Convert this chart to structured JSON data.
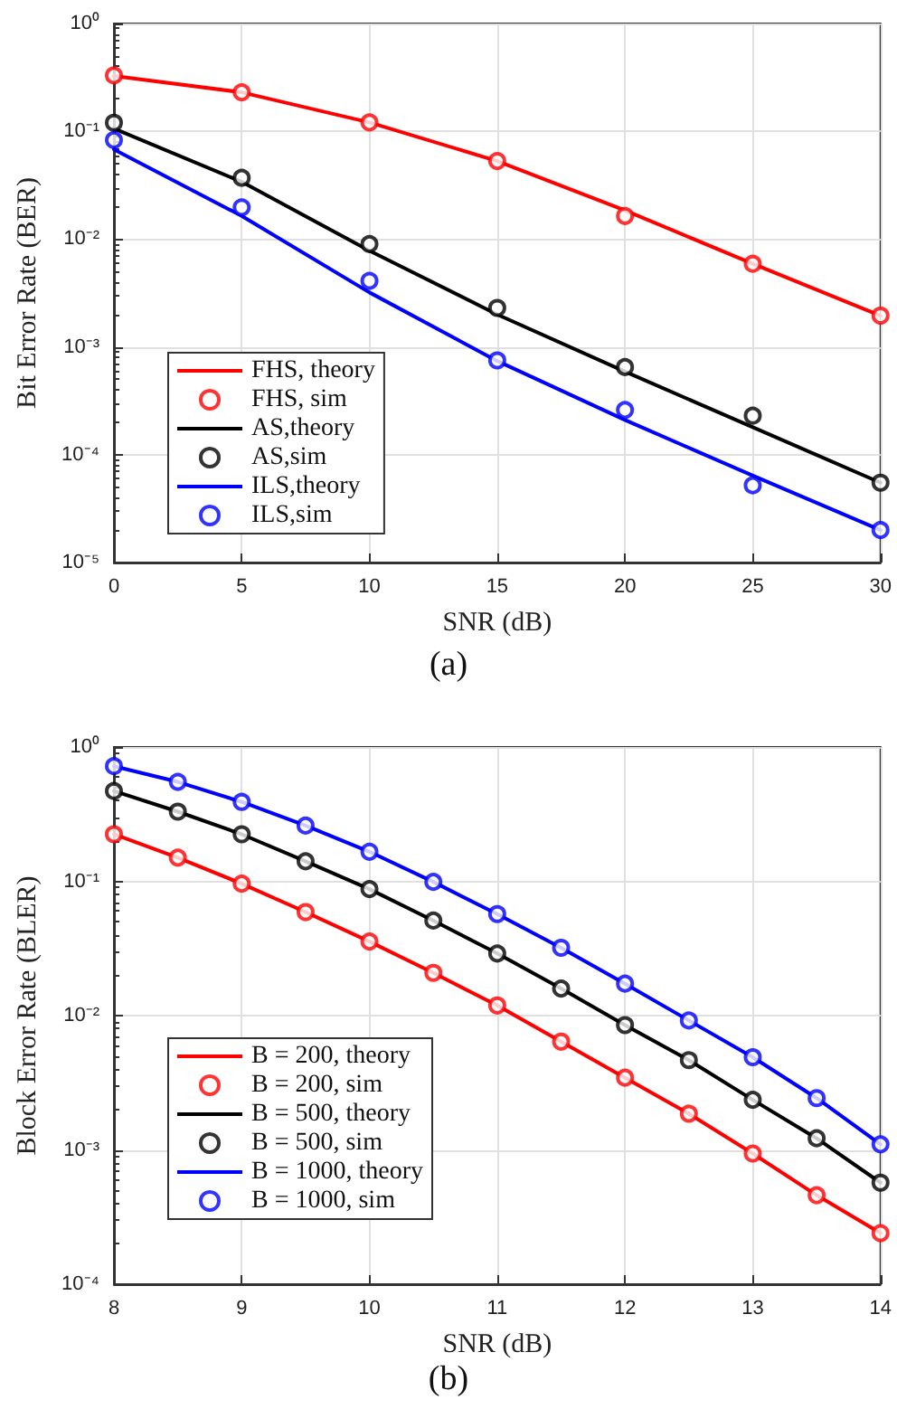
{
  "chart_data": [
    {
      "type": "line",
      "xlabel": "SNR (dB)",
      "ylabel": "Bit Error Rate (BER)",
      "annotations": [
        "(a)"
      ],
      "x": [
        0,
        5,
        10,
        15,
        20,
        25,
        30
      ],
      "xlim": [
        0,
        30
      ],
      "xticks": [
        0,
        5,
        10,
        15,
        20,
        25,
        30
      ],
      "ylim": [
        1e-05,
        1
      ],
      "yticks": [
        {
          "value": 1e-05,
          "label": "10⁻⁵"
        },
        {
          "value": 0.0001,
          "label": "10⁻⁴"
        },
        {
          "value": 0.001,
          "label": "10⁻³"
        },
        {
          "value": 0.01,
          "label": "10⁻²"
        },
        {
          "value": 0.1,
          "label": "10⁻¹"
        },
        {
          "value": 1,
          "label": "10⁰"
        }
      ],
      "log": "y",
      "grid": true,
      "legend": "bottom left",
      "series": [
        {
          "name": "FHS, theory",
          "marker": "none",
          "color": "#ff0000",
          "values": [
            0.326,
            0.23,
            0.121,
            0.053,
            0.0185,
            0.0059,
            0.00195
          ]
        },
        {
          "name": "FHS, sim",
          "type": "scatter",
          "marker": "circle",
          "color": "#ff0000",
          "values": [
            0.33,
            0.23,
            0.121,
            0.053,
            0.0164,
            0.0059,
            0.00195
          ]
        },
        {
          "name": "AS,theory",
          "marker": "none",
          "color": "#000000",
          "values": [
            0.106,
            0.034,
            0.0078,
            0.002,
            0.00059,
            0.00018,
            5.5e-05
          ]
        },
        {
          "name": "AS,sim",
          "type": "scatter",
          "marker": "circle",
          "color": "#000000",
          "values": [
            0.12,
            0.037,
            0.009,
            0.0023,
            0.00065,
            0.00023,
            5.5e-05
          ]
        },
        {
          "name": "ILS,theory",
          "marker": "none",
          "color": "#0000ff",
          "values": [
            0.068,
            0.0164,
            0.0032,
            0.00074,
            0.00021,
            6.4e-05,
            2e-05
          ]
        },
        {
          "name": "ILS,sim",
          "type": "scatter",
          "marker": "circle",
          "color": "#0000ff",
          "values": [
            0.083,
            0.0197,
            0.0041,
            0.00075,
            0.00026,
            5.2e-05,
            2e-05
          ]
        }
      ]
    },
    {
      "type": "line",
      "xlabel": "SNR (dB)",
      "ylabel": "Block Error Rate (BLER)",
      "annotations": [
        "(b)"
      ],
      "x": [
        8,
        8.5,
        9,
        9.5,
        10,
        10.5,
        11,
        11.5,
        12,
        12.5,
        13,
        13.5,
        14
      ],
      "xlim": [
        8,
        14
      ],
      "xticks": [
        8,
        9,
        10,
        11,
        12,
        13,
        14
      ],
      "ylim": [
        0.0001,
        1
      ],
      "yticks": [
        {
          "value": 0.0001,
          "label": "10⁻⁴"
        },
        {
          "value": 0.001,
          "label": "10⁻³"
        },
        {
          "value": 0.01,
          "label": "10⁻²"
        },
        {
          "value": 0.1,
          "label": "10⁻¹"
        },
        {
          "value": 1,
          "label": "10⁰"
        }
      ],
      "log": "y",
      "grid": true,
      "legend": "bottom left",
      "series": [
        {
          "name": "B = 200, theory",
          "marker": "none",
          "color": "#ff0000",
          "values": [
            0.224,
            0.15,
            0.096,
            0.059,
            0.0356,
            0.0208,
            0.0119,
            0.0064,
            0.00345,
            0.00186,
            0.00094,
            0.00046,
            0.00024
          ]
        },
        {
          "name": "B = 200, sim",
          "type": "scatter",
          "marker": "circle",
          "color": "#ff0000",
          "values": [
            0.224,
            0.15,
            0.096,
            0.059,
            0.0356,
            0.0208,
            0.0119,
            0.0064,
            0.00345,
            0.00186,
            0.00094,
            0.00046,
            0.00024
          ]
        },
        {
          "name": "B = 500, theory",
          "marker": "none",
          "color": "#000000",
          "values": [
            0.47,
            0.33,
            0.224,
            0.141,
            0.0875,
            0.051,
            0.029,
            0.0159,
            0.0085,
            0.00466,
            0.00236,
            0.00122,
            0.00057
          ]
        },
        {
          "name": "B = 500, sim",
          "type": "scatter",
          "marker": "circle",
          "color": "#000000",
          "values": [
            0.47,
            0.33,
            0.224,
            0.141,
            0.0875,
            0.051,
            0.029,
            0.0159,
            0.0085,
            0.00466,
            0.00236,
            0.00122,
            0.00057
          ]
        },
        {
          "name": "B = 1000, theory",
          "marker": "none",
          "color": "#0000ff",
          "values": [
            0.72,
            0.55,
            0.39,
            0.26,
            0.166,
            0.099,
            0.057,
            0.032,
            0.0173,
            0.0092,
            0.0049,
            0.00243,
            0.0011
          ]
        },
        {
          "name": "B = 1000, sim",
          "type": "scatter",
          "marker": "circle",
          "color": "#0000ff",
          "values": [
            0.72,
            0.55,
            0.39,
            0.26,
            0.166,
            0.099,
            0.057,
            0.032,
            0.0173,
            0.0092,
            0.0049,
            0.00243,
            0.0011
          ]
        }
      ]
    }
  ]
}
